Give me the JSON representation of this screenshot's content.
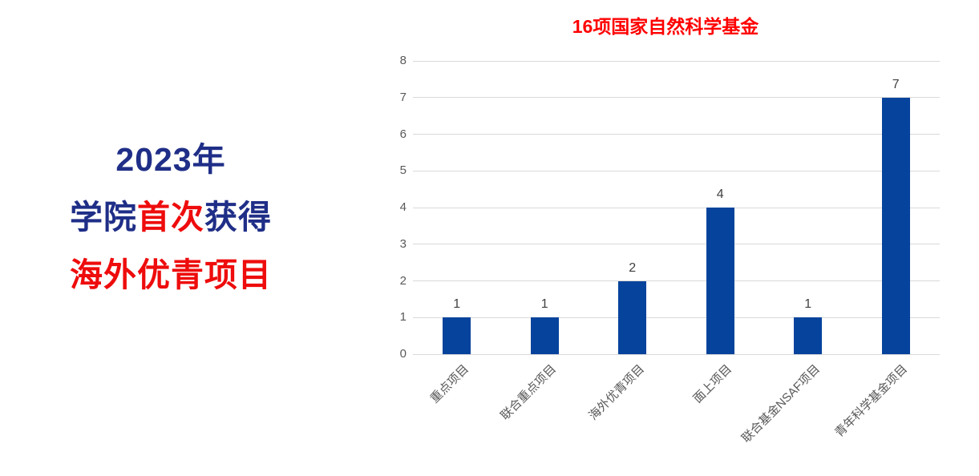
{
  "headline": {
    "line1": "2023年",
    "line2_prefix": "学院",
    "line2_highlight": "首次",
    "line2_suffix": "获得",
    "line3": "海外优青项目"
  },
  "chart_data": {
    "type": "bar",
    "title": "16项国家自然科学基金",
    "categories": [
      "重点项目",
      "联合重点项目",
      "海外优青项目",
      "面上项目",
      "联合基金NSAF项目",
      "青年科学基金项目"
    ],
    "values": [
      1,
      1,
      2,
      4,
      1,
      7
    ],
    "value_labels": [
      "1",
      "1",
      "2",
      "4",
      "1",
      "7"
    ],
    "xlabel": "",
    "ylabel": "",
    "ylim": [
      0,
      8
    ],
    "ytick_step": 1,
    "yticks": [
      "0",
      "1",
      "2",
      "3",
      "4",
      "5",
      "6",
      "7",
      "8"
    ],
    "grid": true,
    "legend": false,
    "x_label_rotation_deg": -45
  },
  "colors": {
    "bar": "#05439c",
    "gridline": "#d9d9d9",
    "axis_labels": "#595959",
    "value_labels": "#404040",
    "chart_title": "#ff0000",
    "headline_navy": "#1f2e87",
    "headline_red": "#ee0c0c",
    "background": "#ffffff"
  }
}
